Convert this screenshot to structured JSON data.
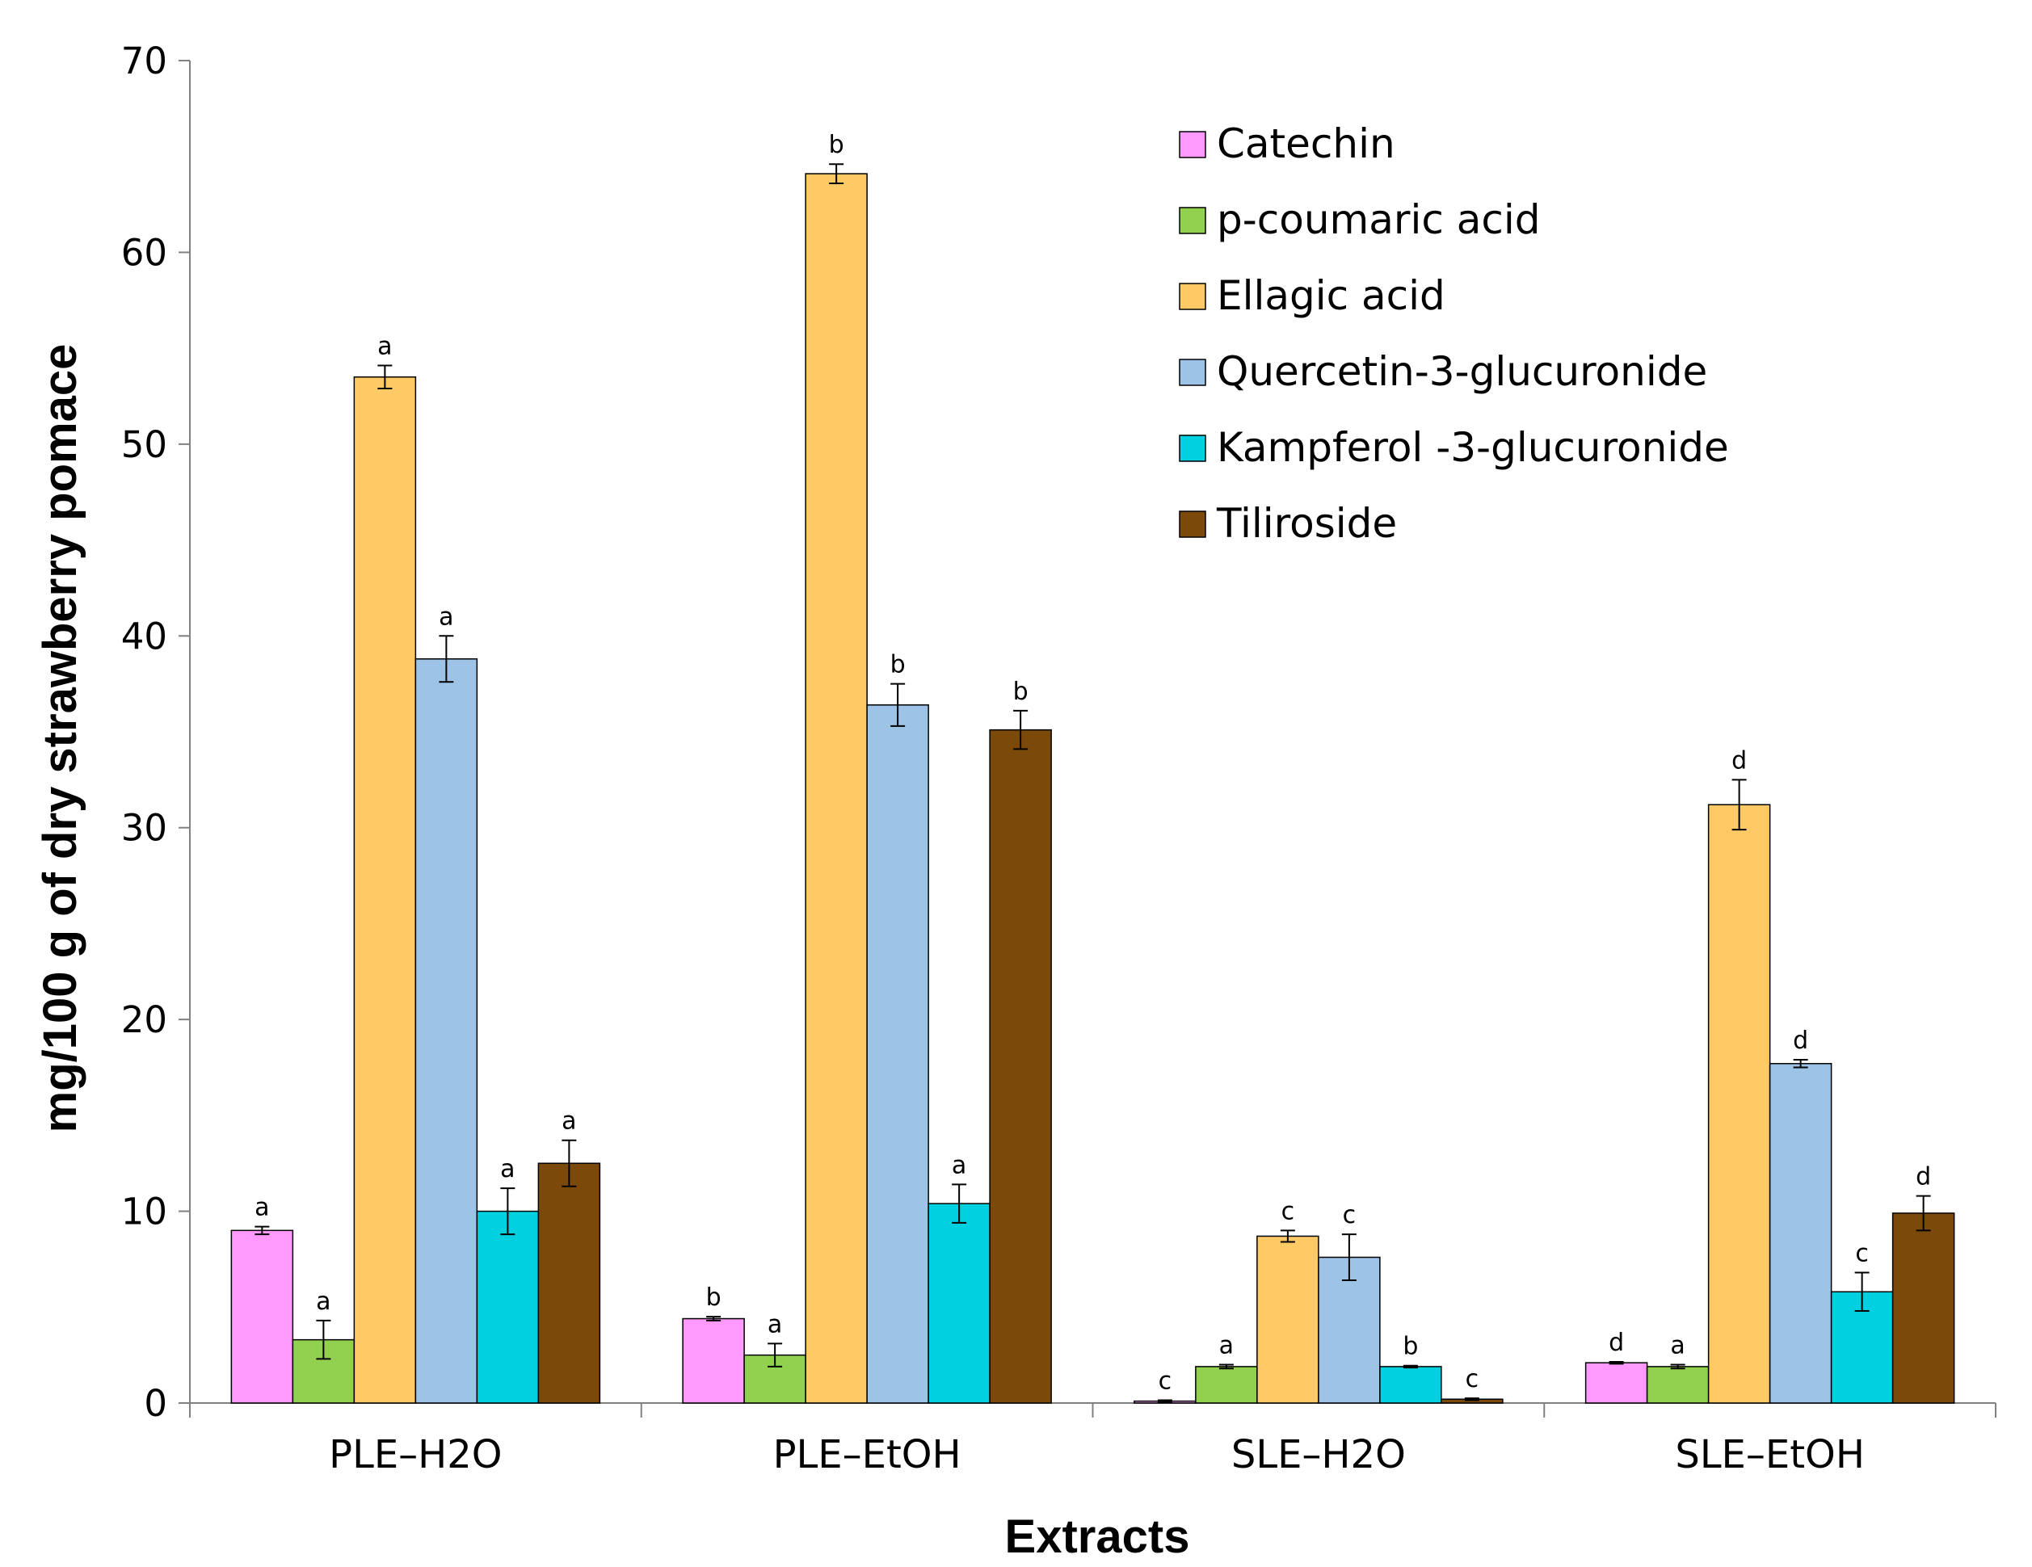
{
  "chart_data": {
    "type": "bar",
    "title": "",
    "xlabel": "Extracts",
    "ylabel": "mg/100 g of dry strawberry pomace",
    "ylim": [
      0,
      70
    ],
    "yticks": [
      0,
      10,
      20,
      30,
      40,
      50,
      60,
      70
    ],
    "categories": [
      "PLE–H2O",
      "PLE–EtOH",
      "SLE–H2O",
      "SLE–EtOH"
    ],
    "legend_position": "top-right",
    "grid": false,
    "series": [
      {
        "name": "Catechin",
        "color": "#ff99ff",
        "values": [
          9.0,
          4.4,
          0.1,
          2.1
        ],
        "errors": [
          0.2,
          0.1,
          0.05,
          0.05
        ],
        "labels": [
          "a",
          "b",
          "c",
          "d"
        ]
      },
      {
        "name": "p-coumaric acid",
        "color": "#92d050",
        "values": [
          3.3,
          2.5,
          1.9,
          1.9
        ],
        "errors": [
          1.0,
          0.6,
          0.1,
          0.1
        ],
        "labels": [
          "a",
          "a",
          "a",
          "a"
        ]
      },
      {
        "name": "Ellagic acid",
        "color": "#ffc966",
        "values": [
          53.5,
          64.1,
          8.7,
          31.2
        ],
        "errors": [
          0.6,
          0.5,
          0.3,
          1.3
        ],
        "labels": [
          "a",
          "b",
          "c",
          "d"
        ]
      },
      {
        "name": "Quercetin-3-glucuronide",
        "color": "#9dc3e6",
        "values": [
          38.8,
          36.4,
          7.6,
          17.7
        ],
        "errors": [
          1.2,
          1.1,
          1.2,
          0.2
        ],
        "labels": [
          "a",
          "b",
          "c",
          "d"
        ]
      },
      {
        "name": "Kampferol -3-glucuronide",
        "color": "#00d0e0",
        "values": [
          10.0,
          10.4,
          1.9,
          5.8
        ],
        "errors": [
          1.2,
          1.0,
          0.05,
          1.0
        ],
        "labels": [
          "a",
          "a",
          "b",
          "c"
        ]
      },
      {
        "name": "Tiliroside",
        "color": "#7b4a0b",
        "values": [
          12.5,
          35.1,
          0.2,
          9.9
        ],
        "errors": [
          1.2,
          1.0,
          0.05,
          0.9
        ],
        "labels": [
          "a",
          "b",
          "c",
          "d"
        ]
      }
    ]
  }
}
